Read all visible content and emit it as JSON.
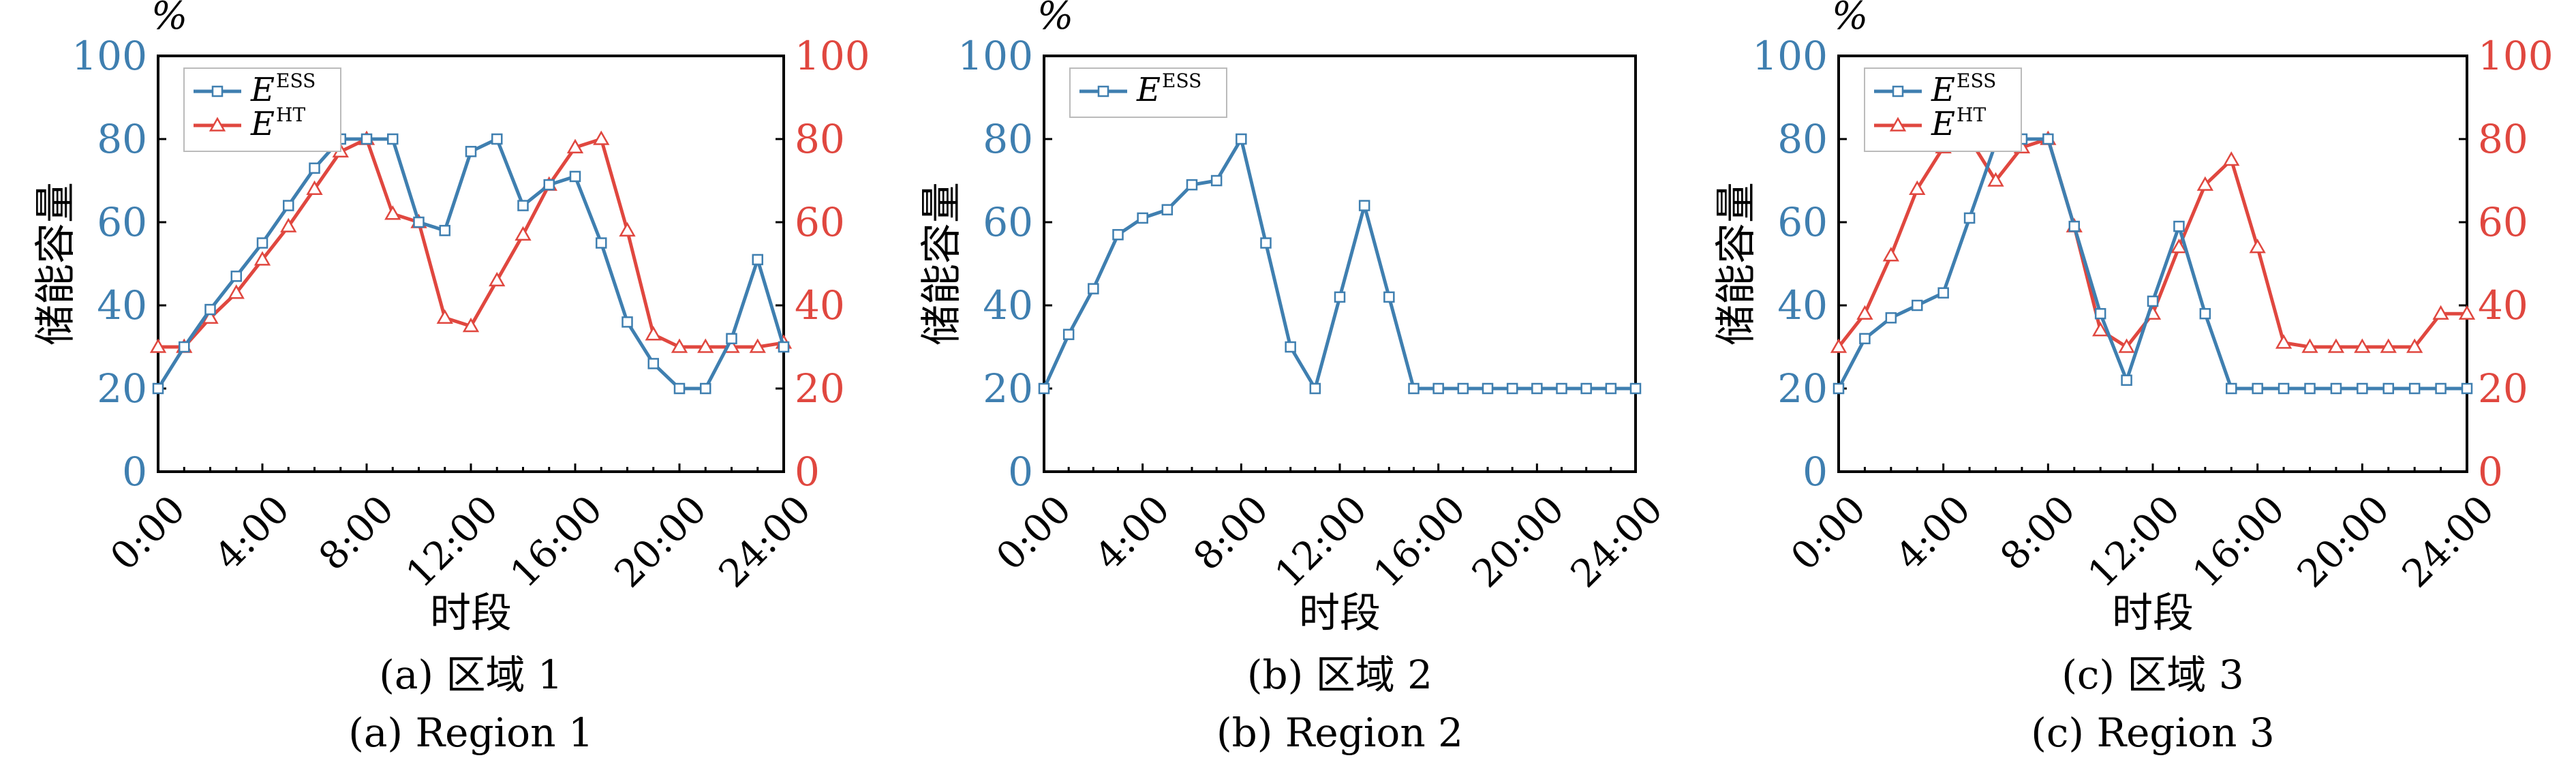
{
  "shared": {
    "x_ticks": [
      "0:00",
      "4:00",
      "8:00",
      "12:00",
      "16:00",
      "20:00",
      "24:00"
    ],
    "y_ticks": [
      "0",
      "20",
      "40",
      "60",
      "80",
      "100"
    ],
    "unit_label": "%",
    "ylabel": "储能容量",
    "xlabel": "时段",
    "colors": {
      "ess": "#3f7fb0",
      "ht": "#e0473f"
    }
  },
  "chart_data": [
    {
      "type": "line",
      "caption_cn": "(a) 区域 1",
      "caption_en": "(a) Region 1",
      "xlabel": "时段",
      "ylabel": "储能容量",
      "xlim": [
        0,
        24
      ],
      "ylim": [
        0,
        100
      ],
      "y2lim": [
        0,
        100
      ],
      "x": [
        0,
        1,
        2,
        3,
        4,
        5,
        6,
        7,
        8,
        9,
        10,
        11,
        12,
        13,
        14,
        15,
        16,
        17,
        18,
        19,
        20,
        21,
        22,
        23,
        24
      ],
      "series": [
        {
          "name": "E^ESS",
          "legend_base": "E",
          "legend_sup": "ESS",
          "axis": "left",
          "marker": "square",
          "color": "#3f7fb0",
          "values": [
            20,
            30,
            39,
            47,
            55,
            64,
            73,
            80,
            80,
            80,
            60,
            58,
            77,
            80,
            64,
            69,
            71,
            55,
            36,
            26,
            20,
            20,
            32,
            51,
            30
          ]
        },
        {
          "name": "E^HT",
          "legend_base": "E",
          "legend_sup": "HT",
          "axis": "right",
          "marker": "triangle",
          "color": "#e0473f",
          "values": [
            30,
            30,
            37,
            43,
            51,
            59,
            68,
            77,
            80,
            62,
            60,
            37,
            35,
            46,
            57,
            69,
            78,
            80,
            58,
            33,
            30,
            30,
            30,
            30,
            31
          ]
        }
      ],
      "legend": "top-left",
      "grid": false
    },
    {
      "type": "line",
      "caption_cn": "(b) 区域 2",
      "caption_en": "(b) Region 2",
      "xlabel": "时段",
      "ylabel": "储能容量",
      "xlim": [
        0,
        24
      ],
      "ylim": [
        0,
        100
      ],
      "x": [
        0,
        1,
        2,
        3,
        4,
        5,
        6,
        7,
        8,
        9,
        10,
        11,
        12,
        13,
        14,
        15,
        16,
        17,
        18,
        19,
        20,
        21,
        22,
        23,
        24
      ],
      "series": [
        {
          "name": "E^ESS",
          "legend_base": "E",
          "legend_sup": "ESS",
          "axis": "left",
          "marker": "square",
          "color": "#3f7fb0",
          "values": [
            20,
            33,
            44,
            57,
            61,
            63,
            69,
            70,
            80,
            55,
            30,
            20,
            42,
            64,
            42,
            20,
            20,
            20,
            20,
            20,
            20,
            20,
            20,
            20,
            20
          ]
        }
      ],
      "legend": "top-left",
      "grid": false
    },
    {
      "type": "line",
      "caption_cn": "(c) 区域 3",
      "caption_en": "(c) Region 3",
      "xlabel": "时段",
      "ylabel": "储能容量",
      "xlim": [
        0,
        24
      ],
      "ylim": [
        0,
        100
      ],
      "y2lim": [
        0,
        100
      ],
      "x": [
        0,
        1,
        2,
        3,
        4,
        5,
        6,
        7,
        8,
        9,
        10,
        11,
        12,
        13,
        14,
        15,
        16,
        17,
        18,
        19,
        20,
        21,
        22,
        23,
        24
      ],
      "series": [
        {
          "name": "E^ESS",
          "legend_base": "E",
          "legend_sup": "ESS",
          "axis": "left",
          "marker": "square",
          "color": "#3f7fb0",
          "values": [
            20,
            32,
            37,
            40,
            43,
            61,
            79,
            80,
            80,
            59,
            38,
            22,
            41,
            59,
            38,
            20,
            20,
            20,
            20,
            20,
            20,
            20,
            20,
            20,
            20
          ]
        },
        {
          "name": "E^HT",
          "legend_base": "E",
          "legend_sup": "HT",
          "axis": "right",
          "marker": "triangle",
          "color": "#e0473f",
          "values": [
            30,
            38,
            52,
            68,
            78,
            80,
            70,
            78,
            80,
            59,
            34,
            30,
            38,
            54,
            69,
            75,
            54,
            31,
            30,
            30,
            30,
            30,
            30,
            38,
            38
          ]
        }
      ],
      "legend": "top-left",
      "grid": false
    }
  ]
}
